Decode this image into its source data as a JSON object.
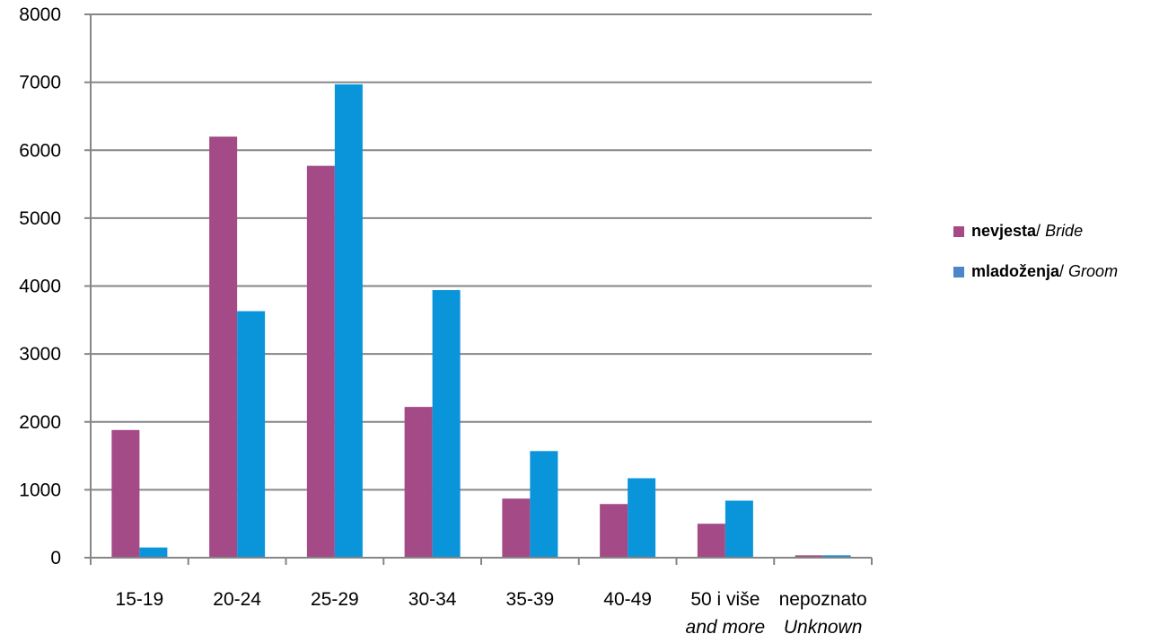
{
  "chart_data": {
    "type": "bar",
    "categories": [
      {
        "label": "15-19",
        "sub": ""
      },
      {
        "label": "20-24",
        "sub": ""
      },
      {
        "label": "25-29",
        "sub": ""
      },
      {
        "label": "30-34",
        "sub": ""
      },
      {
        "label": "35-39",
        "sub": ""
      },
      {
        "label": "40-49",
        "sub": ""
      },
      {
        "label": "50 i više",
        "sub": "and more"
      },
      {
        "label": "nepoznato",
        "sub": "Unknown"
      }
    ],
    "series": [
      {
        "name": "nevjesta",
        "name_en": "Bride",
        "color": "#A44A86",
        "values": [
          1880,
          6200,
          5770,
          2220,
          870,
          790,
          500,
          35
        ]
      },
      {
        "name": "mladoženja",
        "name_en": "Groom",
        "color": "#0A95DA",
        "values": [
          150,
          3630,
          6970,
          3940,
          1570,
          1170,
          840,
          35
        ]
      }
    ],
    "legend_swatch_colors": [
      "#A44A86",
      "#4A86C8"
    ],
    "ylim": [
      0,
      8000
    ],
    "yticks": [
      0,
      1000,
      2000,
      3000,
      4000,
      5000,
      6000,
      7000,
      8000
    ],
    "grid": true,
    "gridline_color": "#868686",
    "legend_position": "right",
    "title": "",
    "xlabel": "",
    "ylabel": ""
  }
}
